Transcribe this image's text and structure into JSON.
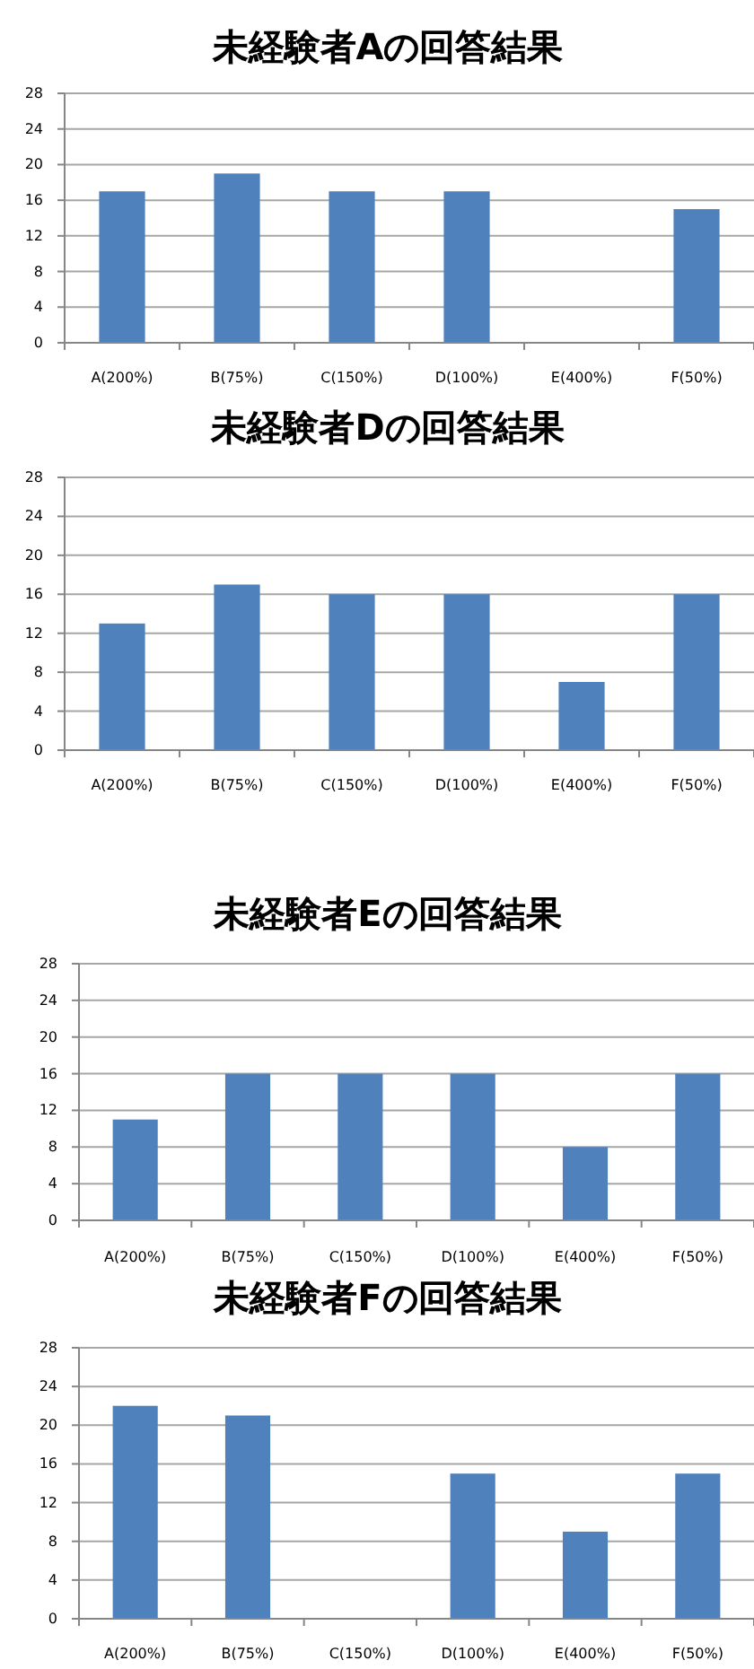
{
  "chart_data": [
    {
      "type": "bar",
      "title": "未経験者Aの回答結果",
      "categories": [
        "A(200%)",
        "B(75%)",
        "C(150%)",
        "D(100%)",
        "E(400%)",
        "F(50%)"
      ],
      "values": [
        17,
        19,
        17,
        17,
        0,
        15
      ],
      "color": "#4f81bd",
      "ylim": [
        0,
        28
      ],
      "yticks": [
        0,
        4,
        8,
        12,
        16,
        20,
        24,
        28
      ],
      "grid": "y"
    },
    {
      "type": "bar",
      "title": "未経験者Dの回答結果",
      "categories": [
        "A(200%)",
        "B(75%)",
        "C(150%)",
        "D(100%)",
        "E(400%)",
        "F(50%)"
      ],
      "values": [
        13,
        17,
        16,
        16,
        7,
        16
      ],
      "color": "#4f81bd",
      "ylim": [
        0,
        28
      ],
      "yticks": [
        0,
        4,
        8,
        12,
        16,
        20,
        24,
        28
      ],
      "grid": "y"
    },
    {
      "type": "bar",
      "title": "未経験者Eの回答結果",
      "categories": [
        "A(200%)",
        "B(75%)",
        "C(150%)",
        "D(100%)",
        "E(400%)",
        "F(50%)"
      ],
      "values": [
        11,
        16,
        16,
        16,
        8,
        16
      ],
      "color": "#4f81bd",
      "ylim": [
        0,
        28
      ],
      "yticks": [
        0,
        4,
        8,
        12,
        16,
        20,
        24,
        28
      ],
      "grid": "y"
    },
    {
      "type": "bar",
      "title": "未経験者Fの回答結果",
      "categories": [
        "A(200%)",
        "B(75%)",
        "C(150%)",
        "D(100%)",
        "E(400%)",
        "F(50%)"
      ],
      "values": [
        22,
        21,
        0,
        15,
        9,
        15
      ],
      "color": "#4f81bd",
      "ylim": [
        0,
        28
      ],
      "yticks": [
        0,
        4,
        8,
        12,
        16,
        20,
        24,
        28
      ],
      "grid": "y"
    }
  ]
}
